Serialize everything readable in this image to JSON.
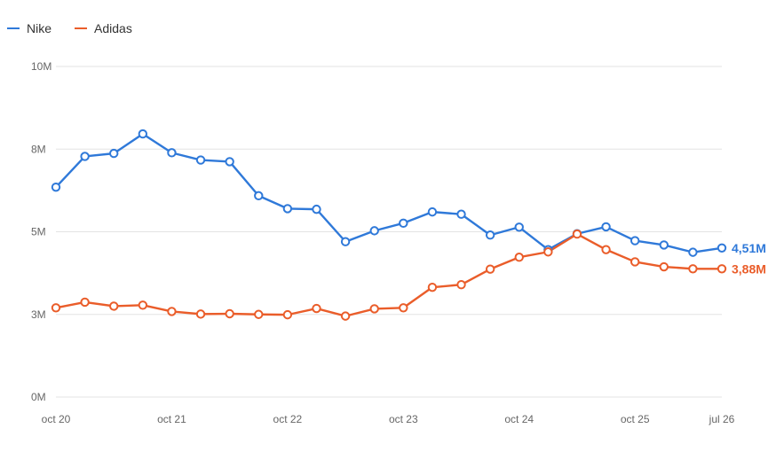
{
  "chart_data": {
    "type": "line",
    "legend_position": "top-left",
    "grid": true,
    "y_ticks": [
      "0M",
      "3M",
      "5M",
      "8M",
      "10M"
    ],
    "x_ticks": [
      "oct 20",
      "oct 21",
      "oct 22",
      "oct 23",
      "oct 24",
      "oct 25",
      "jul 26"
    ],
    "ylim": [
      0,
      10
    ],
    "series": [
      {
        "name": "Nike",
        "color": "#2f79d9",
        "end_label": "4,51M",
        "values": [
          6.35,
          7.28,
          7.37,
          7.96,
          7.39,
          7.17,
          7.12,
          6.09,
          5.7,
          5.68,
          4.7,
          5.03,
          5.26,
          5.6,
          5.53,
          4.9,
          5.14,
          4.46,
          4.94,
          5.15,
          4.73,
          4.6,
          4.38,
          4.51
        ]
      },
      {
        "name": "Adidas",
        "color": "#ea5d2a",
        "end_label": "3,88M",
        "values": [
          2.7,
          2.87,
          2.75,
          2.78,
          2.59,
          2.51,
          2.52,
          2.5,
          2.49,
          2.68,
          2.45,
          2.67,
          2.7,
          3.32,
          3.4,
          3.87,
          4.23,
          4.39,
          4.93,
          4.46,
          4.09,
          3.94,
          3.88,
          3.88
        ]
      }
    ]
  }
}
